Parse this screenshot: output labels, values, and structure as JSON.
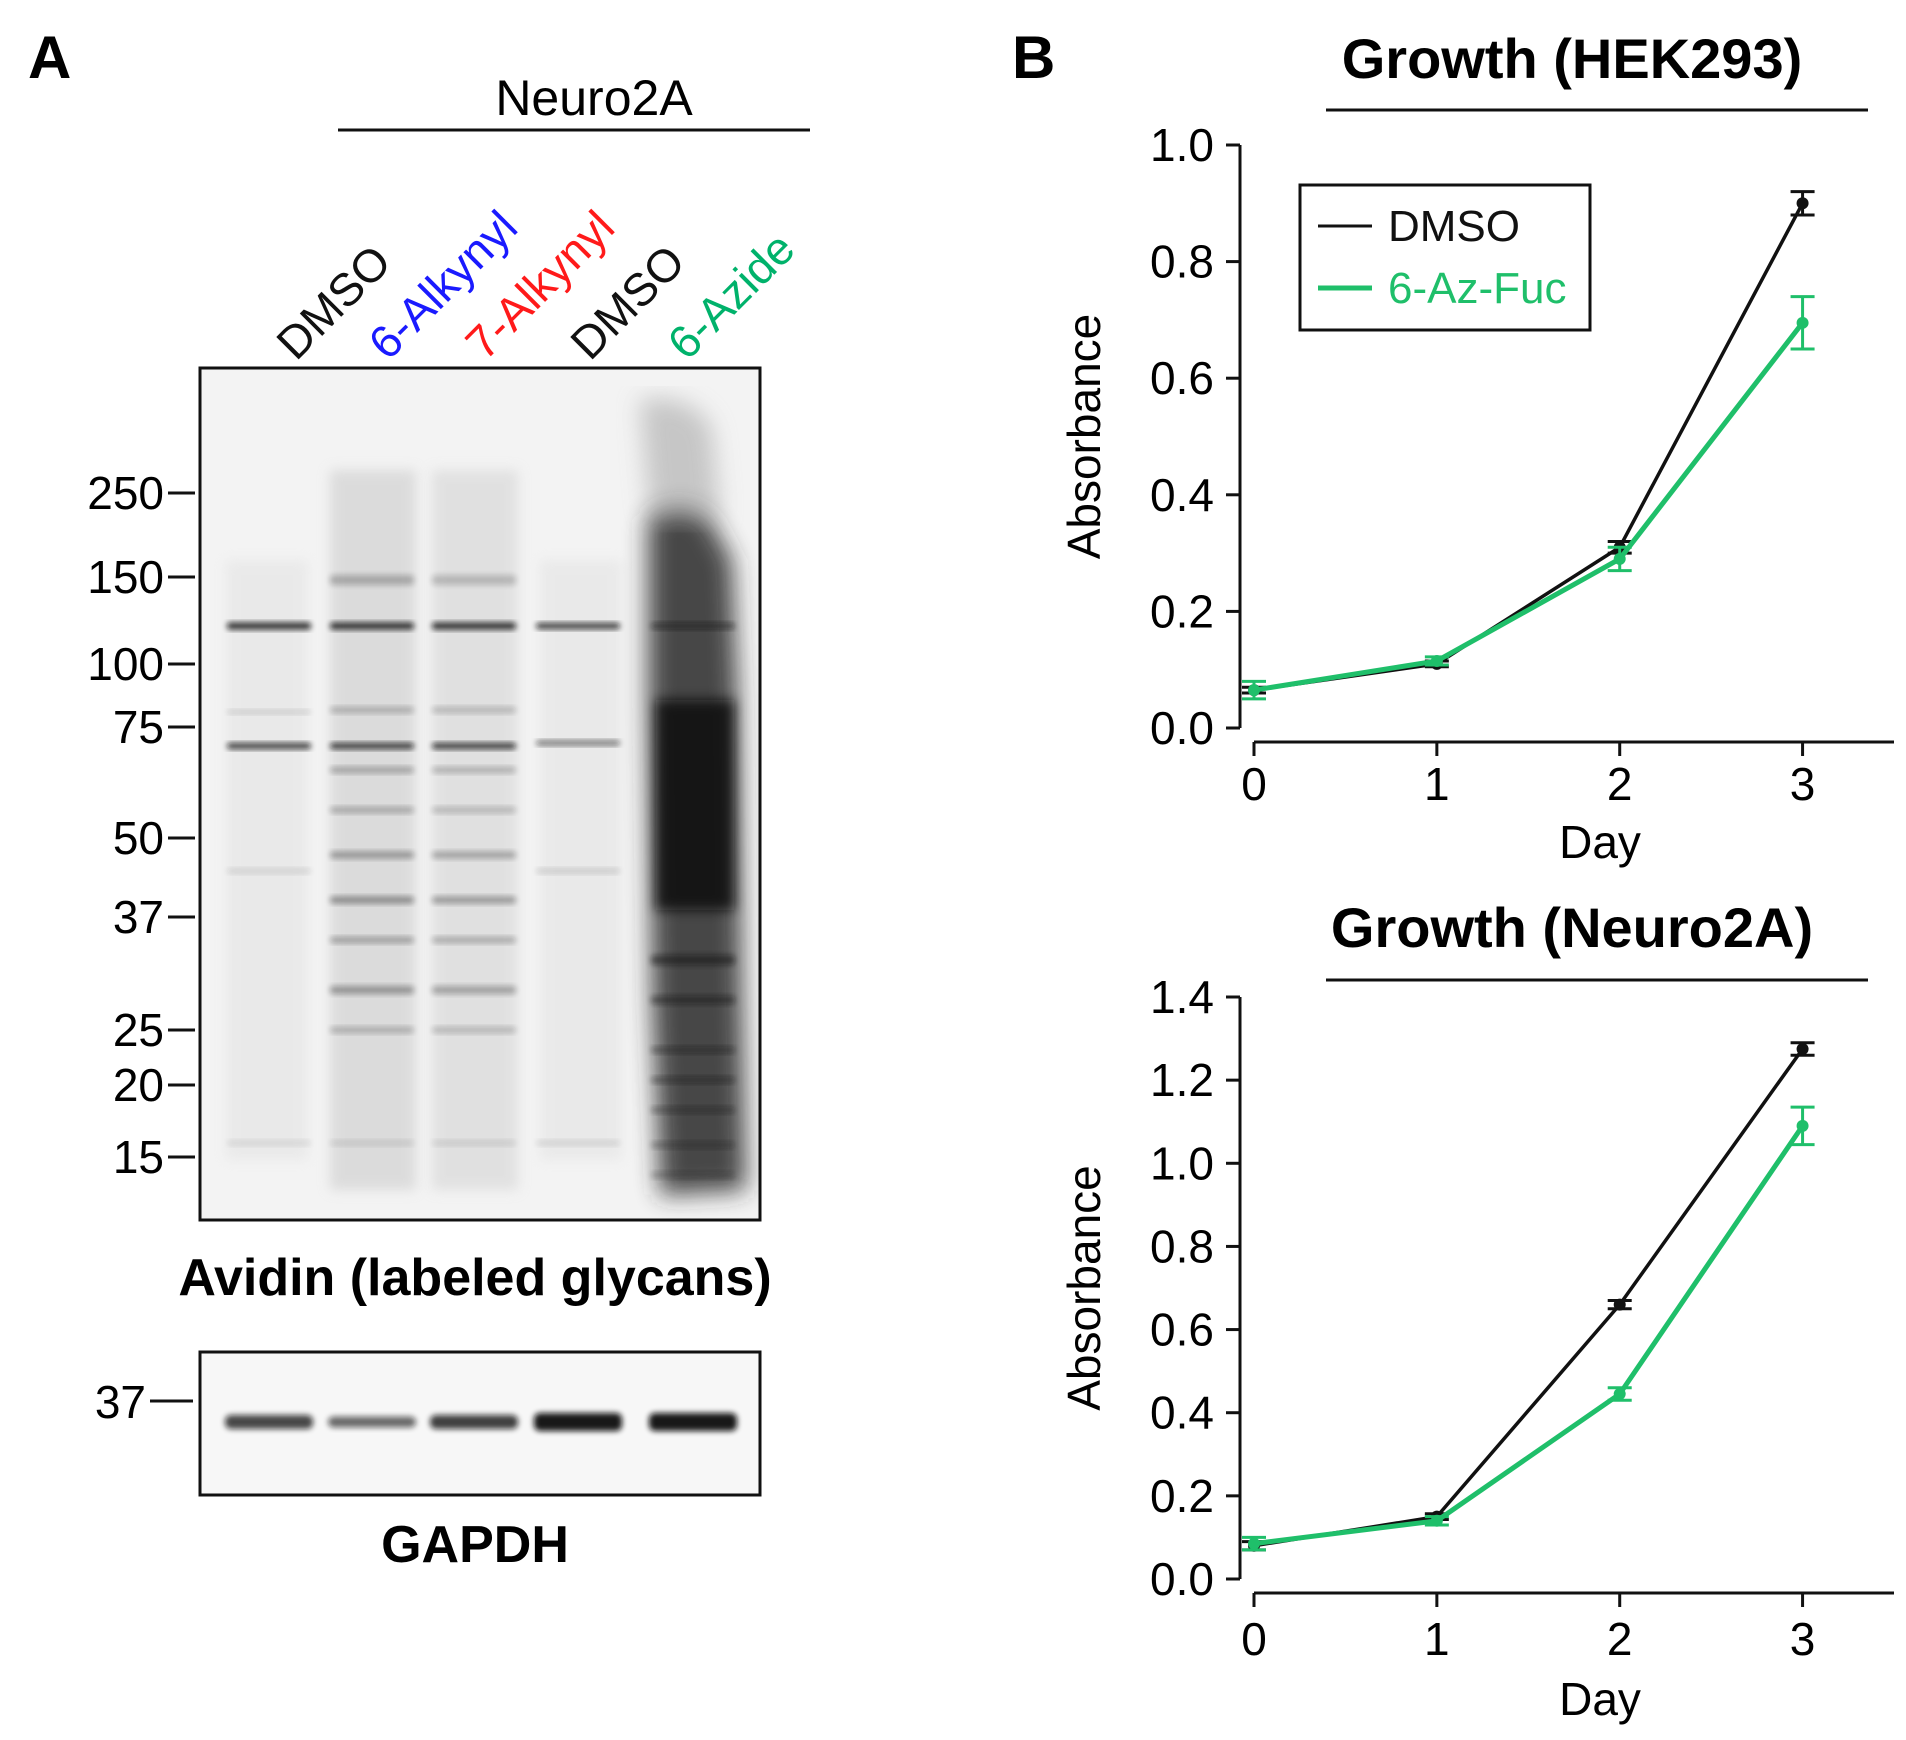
{
  "panel_a": {
    "letter": "A",
    "group_label": "Neuro2A",
    "lanes": [
      {
        "label": "DMSO",
        "color": "#111111"
      },
      {
        "label": "6-Alkynyl",
        "color": "#1a1aff"
      },
      {
        "label": "7-Alkynyl",
        "color": "#ff1a1a"
      },
      {
        "label": "DMSO",
        "color": "#111111"
      },
      {
        "label": "6-Azide",
        "color": "#00b26b"
      }
    ],
    "markers": [
      "250",
      "150",
      "100",
      "75",
      "50",
      "37",
      "25",
      "20",
      "15"
    ],
    "blot_caption": "Avidin (labeled glycans)",
    "gapdh_marker": "37",
    "gapdh_caption": "GAPDH"
  },
  "panel_b": {
    "letter": "B"
  },
  "chart_data": [
    {
      "type": "line",
      "title": "Growth (HEK293)",
      "xlabel": "Day",
      "ylabel": "Absorbance",
      "x": [
        0,
        1,
        2,
        3
      ],
      "xlim": [
        0,
        3.5
      ],
      "ylim": [
        0,
        1.0
      ],
      "yticks": [
        "0.0",
        "0.2",
        "0.4",
        "0.6",
        "0.8",
        "1.0"
      ],
      "xticks": [
        "0",
        "1",
        "2",
        "3"
      ],
      "legend": {
        "position": "top-left",
        "entries": [
          "DMSO",
          "6-Az-Fuc"
        ]
      },
      "series": [
        {
          "name": "DMSO",
          "color": "#111111",
          "values": [
            0.065,
            0.11,
            0.31,
            0.9
          ],
          "errors": [
            0.005,
            0.005,
            0.01,
            0.02
          ]
        },
        {
          "name": "6-Az-Fuc",
          "color": "#1fbf6a",
          "values": [
            0.065,
            0.115,
            0.29,
            0.695
          ],
          "errors": [
            0.015,
            0.007,
            0.02,
            0.045
          ]
        }
      ]
    },
    {
      "type": "line",
      "title": "Growth (Neuro2A)",
      "xlabel": "Day",
      "ylabel": "Absorbance",
      "x": [
        0,
        1,
        2,
        3
      ],
      "xlim": [
        0,
        3.5
      ],
      "ylim": [
        0,
        1.4
      ],
      "yticks": [
        "0.0",
        "0.2",
        "0.4",
        "0.6",
        "0.8",
        "1.0",
        "1.2",
        "1.4"
      ],
      "xticks": [
        "0",
        "1",
        "2",
        "3"
      ],
      "series": [
        {
          "name": "DMSO",
          "color": "#111111",
          "values": [
            0.08,
            0.15,
            0.66,
            1.275
          ],
          "errors": [
            0.01,
            0.007,
            0.01,
            0.015
          ]
        },
        {
          "name": "6-Az-Fuc",
          "color": "#1fbf6a",
          "values": [
            0.085,
            0.14,
            0.445,
            1.09
          ],
          "errors": [
            0.015,
            0.01,
            0.015,
            0.045
          ]
        }
      ]
    }
  ]
}
